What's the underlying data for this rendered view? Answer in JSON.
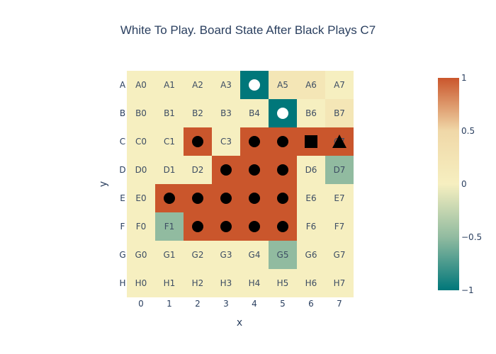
{
  "title": "White To Play. Board State After Black Plays C7",
  "board": {
    "rows": [
      "A",
      "B",
      "C",
      "D",
      "E",
      "F",
      "G",
      "H"
    ],
    "cols": [
      "0",
      "1",
      "2",
      "3",
      "4",
      "5",
      "6",
      "7"
    ],
    "xlabel": "x",
    "ylabel": "y",
    "values": [
      [
        0,
        0,
        0,
        0,
        -1,
        0.2,
        0.2,
        0
      ],
      [
        0,
        0,
        0,
        0,
        0,
        -1,
        0,
        0.2
      ],
      [
        0,
        0,
        1,
        0,
        1,
        1,
        1,
        1
      ],
      [
        0,
        0,
        0,
        1,
        1,
        1,
        0,
        -0.5
      ],
      [
        0,
        1,
        1,
        1,
        1,
        1,
        0,
        0
      ],
      [
        0,
        -0.5,
        1,
        1,
        1,
        1,
        0,
        0
      ],
      [
        0,
        0,
        0,
        0,
        0,
        -0.5,
        0,
        0
      ],
      [
        0,
        0,
        0,
        0,
        0,
        0,
        0,
        0
      ]
    ],
    "stones": [
      {
        "cell": "A4",
        "color": "white",
        "shape": "circle"
      },
      {
        "cell": "B5",
        "color": "white",
        "shape": "circle"
      },
      {
        "cell": "C2",
        "color": "black",
        "shape": "circle"
      },
      {
        "cell": "C4",
        "color": "black",
        "shape": "circle"
      },
      {
        "cell": "C5",
        "color": "black",
        "shape": "circle"
      },
      {
        "cell": "C6",
        "color": "black",
        "shape": "square"
      },
      {
        "cell": "C7",
        "color": "black",
        "shape": "triangle"
      },
      {
        "cell": "D3",
        "color": "black",
        "shape": "circle"
      },
      {
        "cell": "D4",
        "color": "black",
        "shape": "circle"
      },
      {
        "cell": "D5",
        "color": "black",
        "shape": "circle"
      },
      {
        "cell": "E1",
        "color": "black",
        "shape": "circle"
      },
      {
        "cell": "E2",
        "color": "black",
        "shape": "circle"
      },
      {
        "cell": "E3",
        "color": "black",
        "shape": "circle"
      },
      {
        "cell": "E4",
        "color": "black",
        "shape": "circle"
      },
      {
        "cell": "E5",
        "color": "black",
        "shape": "circle"
      },
      {
        "cell": "F2",
        "color": "black",
        "shape": "circle"
      },
      {
        "cell": "F3",
        "color": "black",
        "shape": "circle"
      },
      {
        "cell": "F4",
        "color": "black",
        "shape": "circle"
      },
      {
        "cell": "F5",
        "color": "black",
        "shape": "circle"
      }
    ]
  },
  "colorbar": {
    "range": [
      -1,
      1
    ],
    "ticks": [
      {
        "value": 1,
        "label": "1"
      },
      {
        "value": 0.5,
        "label": "0.5"
      },
      {
        "value": 0,
        "label": "0"
      },
      {
        "value": -0.5,
        "label": "−0.5"
      },
      {
        "value": -1,
        "label": "−1"
      }
    ],
    "colors": [
      "#00777a",
      "#91bba0",
      "#f6efc0",
      "#f0d8a8",
      "#ca562c"
    ]
  }
}
